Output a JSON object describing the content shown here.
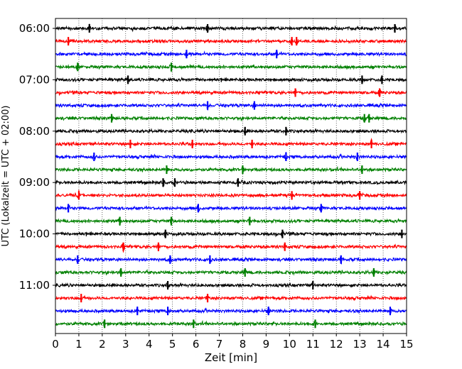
{
  "chart_data": {
    "type": "line",
    "xlabel": "Zeit  [min]",
    "ylabel": "UTC (Lokalzeit = UTC + 02:00)",
    "xlim": [
      0,
      15
    ],
    "x_ticks": [
      "0",
      "1",
      "2",
      "3",
      "4",
      "5",
      "6",
      "7",
      "8",
      "9",
      "10",
      "11",
      "12",
      "13",
      "14",
      "15"
    ],
    "y_ticks": [
      {
        "label": "06:00",
        "trace": 0
      },
      {
        "label": "07:00",
        "trace": 4
      },
      {
        "label": "08:00",
        "trace": 8
      },
      {
        "label": "09:00",
        "trace": 12
      },
      {
        "label": "10:00",
        "trace": 16
      },
      {
        "label": "11:00",
        "trace": 20
      }
    ],
    "grid": "vertical dotted lines at each minute",
    "trace_interval_min": 15,
    "trace_colors_cycle": [
      "#000000",
      "#ff0000",
      "#0000ff",
      "#008000"
    ],
    "traces": [
      {
        "start": "06:00",
        "color": "#000000",
        "events_min": [
          1.45,
          6.5,
          14.5
        ]
      },
      {
        "start": "06:15",
        "color": "#ff0000",
        "events_min": [
          0.55,
          10.1,
          10.3
        ]
      },
      {
        "start": "06:30",
        "color": "#0000ff",
        "events_min": [
          5.6,
          9.45
        ]
      },
      {
        "start": "06:45",
        "color": "#008000",
        "events_min": [
          0.95,
          4.95
        ]
      },
      {
        "start": "07:00",
        "color": "#000000",
        "events_min": [
          3.1,
          13.1,
          13.95
        ]
      },
      {
        "start": "07:15",
        "color": "#ff0000",
        "events_min": [
          10.25,
          13.85
        ]
      },
      {
        "start": "07:30",
        "color": "#0000ff",
        "events_min": [
          6.5,
          8.5
        ]
      },
      {
        "start": "07:45",
        "color": "#008000",
        "events_min": [
          2.4,
          13.2,
          13.4
        ]
      },
      {
        "start": "08:00",
        "color": "#000000",
        "events_min": [
          8.1,
          9.85
        ]
      },
      {
        "start": "08:15",
        "color": "#ff0000",
        "events_min": [
          3.2,
          5.85,
          8.4,
          13.5
        ]
      },
      {
        "start": "08:30",
        "color": "#0000ff",
        "events_min": [
          1.65,
          9.85,
          12.9
        ]
      },
      {
        "start": "08:45",
        "color": "#008000",
        "events_min": [
          4.75,
          8.0,
          13.1
        ]
      },
      {
        "start": "09:00",
        "color": "#000000",
        "events_min": [
          4.6,
          5.1,
          7.8
        ]
      },
      {
        "start": "09:15",
        "color": "#ff0000",
        "events_min": [
          1.0,
          10.1,
          13.0
        ]
      },
      {
        "start": "09:30",
        "color": "#0000ff",
        "events_min": [
          0.55,
          6.1,
          11.35
        ]
      },
      {
        "start": "09:45",
        "color": "#008000",
        "events_min": [
          2.75,
          4.95,
          8.3
        ]
      },
      {
        "start": "10:00",
        "color": "#000000",
        "events_min": [
          4.7,
          9.7,
          14.8
        ]
      },
      {
        "start": "10:15",
        "color": "#ff0000",
        "events_min": [
          2.9,
          4.4,
          9.8
        ]
      },
      {
        "start": "10:30",
        "color": "#0000ff",
        "events_min": [
          0.95,
          4.9,
          6.6,
          12.2
        ]
      },
      {
        "start": "10:45",
        "color": "#008000",
        "events_min": [
          2.8,
          8.1,
          13.6
        ]
      },
      {
        "start": "11:00",
        "color": "#000000",
        "events_min": [
          4.8,
          11.0
        ]
      },
      {
        "start": "11:15",
        "color": "#ff0000",
        "events_min": [
          1.1,
          6.5
        ]
      },
      {
        "start": "11:30",
        "color": "#0000ff",
        "events_min": [
          3.5,
          4.8,
          9.1,
          14.3
        ]
      },
      {
        "start": "11:45",
        "color": "#008000",
        "events_min": [
          2.1,
          5.9,
          11.1
        ]
      }
    ]
  }
}
